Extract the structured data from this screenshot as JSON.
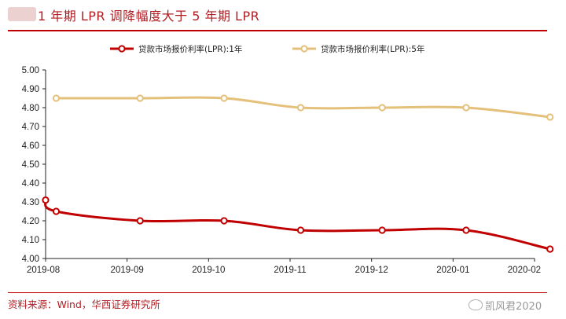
{
  "header": {
    "title": "1 年期 LPR 调降幅度大于 5 年期 LPR"
  },
  "footer": {
    "source": "资料来源：Wind，华西证券研究所",
    "watermark": "凯风君2020"
  },
  "chart_data": {
    "type": "line",
    "title": "1 年期 LPR 调降幅度大于 5 年期 LPR",
    "xlabel": "",
    "ylabel": "",
    "ylim": [
      4.0,
      5.0
    ],
    "yticks": [
      4.0,
      4.1,
      4.2,
      4.3,
      4.4,
      4.5,
      4.6,
      4.7,
      4.8,
      4.9,
      5.0
    ],
    "ytick_labels": [
      "4.00",
      "4.10",
      "4.20",
      "4.30",
      "4.40",
      "4.50",
      "4.60",
      "4.70",
      "4.80",
      "4.90",
      "5.00"
    ],
    "x_domain": [
      0,
      6
    ],
    "xticks": [
      0,
      1,
      2,
      3,
      4,
      5,
      6
    ],
    "xtick_labels": [
      "2019-08",
      "2019-09",
      "2019-10",
      "2019-11",
      "2019-12",
      "2020-01",
      "2020-02"
    ],
    "grid": false,
    "legend_position": "top-center",
    "series": [
      {
        "name": "贷款市场报价利率(LPR):1年",
        "color": "#c00000",
        "x": [
          0,
          0.13,
          1.16,
          2.19,
          3.13,
          4.13,
          5.16,
          6.19
        ],
        "values": [
          4.31,
          4.25,
          4.2,
          4.2,
          4.15,
          4.15,
          4.15,
          4.05
        ]
      },
      {
        "name": "贷款市场报价利率(LPR):5年",
        "color": "#e5c07b",
        "x": [
          0.13,
          1.16,
          2.19,
          3.13,
          4.13,
          5.16,
          6.19
        ],
        "values": [
          4.85,
          4.85,
          4.85,
          4.8,
          4.8,
          4.8,
          4.75
        ]
      }
    ]
  }
}
